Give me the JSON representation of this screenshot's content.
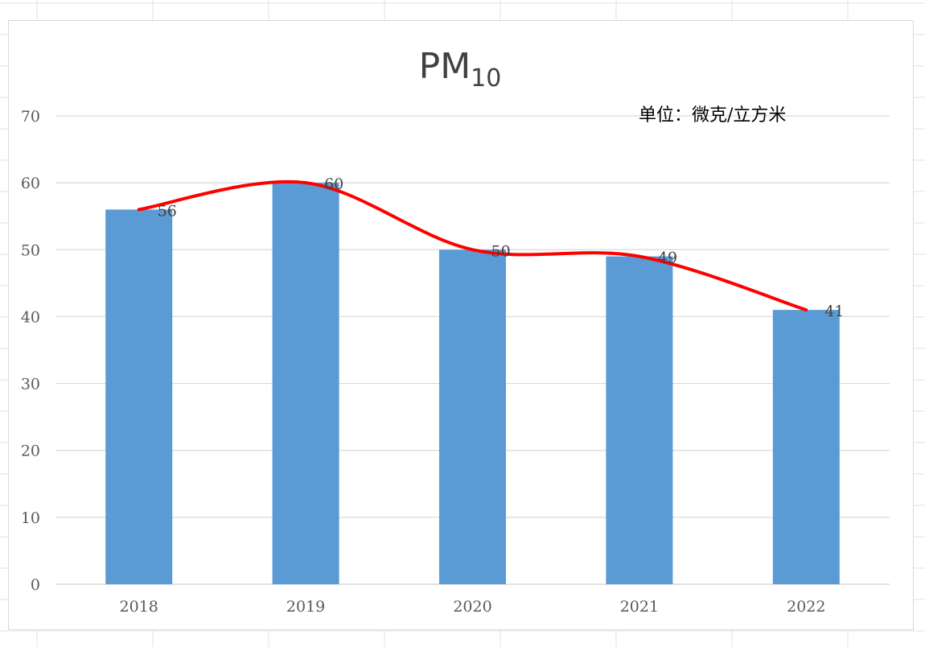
{
  "chart_data": {
    "type": "bar",
    "title": "PM",
    "title_subscript": "10",
    "unit_label": "单位：微克/立方米",
    "categories": [
      "2018",
      "2019",
      "2020",
      "2021",
      "2022"
    ],
    "values": [
      56,
      60,
      50,
      49,
      41
    ],
    "data_labels": [
      "56",
      "60",
      "50",
      "49",
      "41"
    ],
    "ylim": [
      0,
      70
    ],
    "yticks": [
      "0",
      "10",
      "20",
      "30",
      "40",
      "50",
      "60",
      "70"
    ],
    "grid": true,
    "legend": "none",
    "trend_line": "smoothed",
    "colors": {
      "bar": "#5b9bd5",
      "trend": "#ff0000",
      "grid": "#d9d9d9"
    }
  }
}
